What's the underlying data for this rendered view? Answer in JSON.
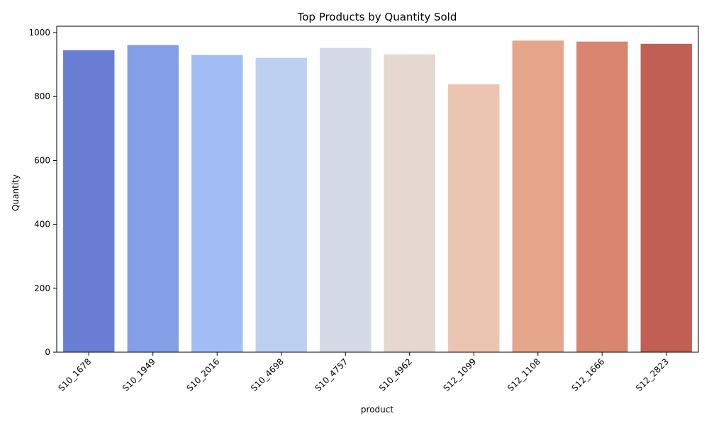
{
  "chart_data": {
    "type": "bar",
    "title": "Top Products by Quantity Sold",
    "xlabel": "product",
    "ylabel": "Quantity",
    "ylim": [
      0,
      1020
    ],
    "yticks": [
      0,
      200,
      400,
      600,
      800,
      1000
    ],
    "grid": false,
    "categories": [
      "S10_1678",
      "S10_1949",
      "S10_2016",
      "S10_4698",
      "S10_4757",
      "S10_4962",
      "S12_1099",
      "S12_1108",
      "S12_1666",
      "S12_2823"
    ],
    "values": [
      945,
      961,
      930,
      921,
      952,
      932,
      838,
      975,
      972,
      965
    ],
    "colors": [
      "#6a7fd4",
      "#849fe6",
      "#a2bcf6",
      "#bdd0f2",
      "#d5dbe6",
      "#e4d8d1",
      "#ebc5b1",
      "#e6a68b",
      "#d8866f",
      "#c15f54"
    ]
  }
}
